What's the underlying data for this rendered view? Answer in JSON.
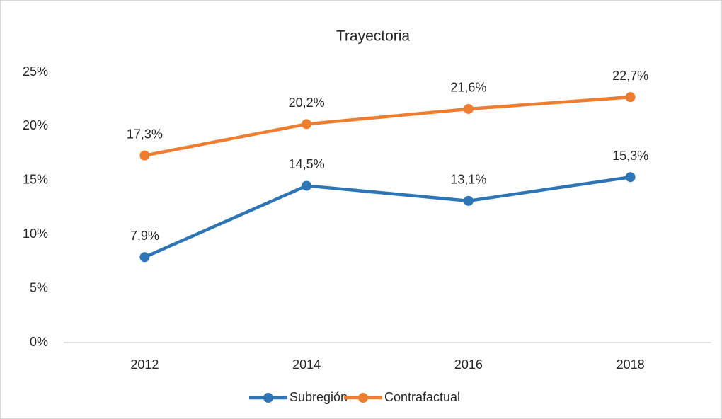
{
  "chart_data": {
    "type": "line",
    "title": "Trayectoria",
    "categories": [
      "2012",
      "2014",
      "2016",
      "2018"
    ],
    "series": [
      {
        "name": "Subregión",
        "color": "#2e75b6",
        "values": [
          7.9,
          14.5,
          13.1,
          15.3
        ],
        "value_labels": [
          "7,9%",
          "14,5%",
          "13,1%",
          "15,3%"
        ]
      },
      {
        "name": "Contrafactual",
        "color": "#ed7d31",
        "values": [
          17.3,
          20.2,
          21.6,
          22.7
        ],
        "value_labels": [
          "17,3%",
          "20,2%",
          "21,6%",
          "22,7%"
        ]
      }
    ],
    "ylim": [
      0,
      25
    ],
    "yticks": [
      {
        "value": 0,
        "label": "0%"
      },
      {
        "value": 5,
        "label": "5%"
      },
      {
        "value": 10,
        "label": "10%"
      },
      {
        "value": 15,
        "label": "15%"
      },
      {
        "value": 20,
        "label": "20%"
      },
      {
        "value": 25,
        "label": "25%"
      }
    ],
    "grid": false,
    "legend": "bottom"
  }
}
